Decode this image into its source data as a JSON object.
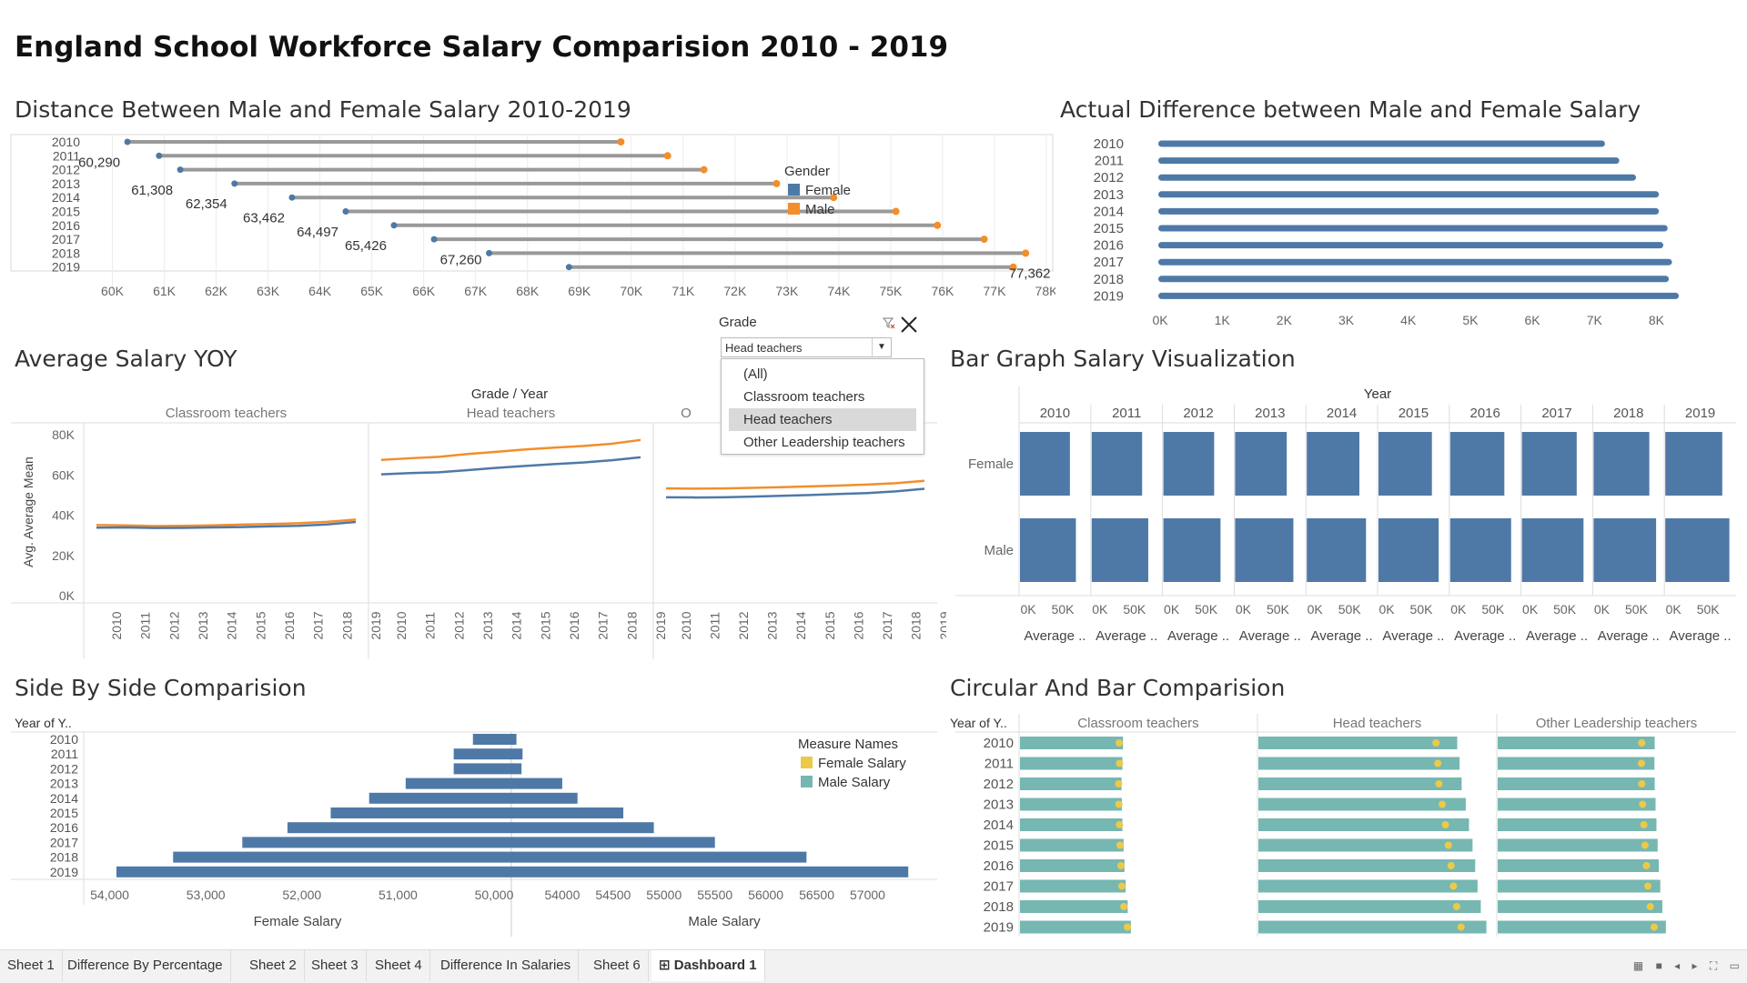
{
  "dashboard_title": "England School Workforce Salary Comparision 2010 - 2019",
  "colors": {
    "female": "#4e79a7",
    "male": "#f28e2b",
    "female_salary": "#edc948",
    "male_salary": "#76b7b2",
    "line_gray": "#999999"
  },
  "panel1": {
    "title": "Distance Between Male and Female Salary  2010-2019",
    "legend_title": "Gender",
    "legend_items": [
      "Female",
      "Male"
    ],
    "chart_data": {
      "type": "dumbbell",
      "years": [
        "2010",
        "2011",
        "2012",
        "2013",
        "2014",
        "2015",
        "2016",
        "2017",
        "2018",
        "2019"
      ],
      "female": [
        60290,
        60900,
        61308,
        62354,
        63462,
        64497,
        65426,
        66200,
        67260,
        68800
      ],
      "male": [
        69800,
        70700,
        71400,
        72800,
        73900,
        75100,
        75900,
        76800,
        77600,
        77362
      ],
      "labels": [
        {
          "row": 1,
          "value": 60290,
          "text": "60,290"
        },
        {
          "row": 3,
          "value": 61308,
          "text": "61,308"
        },
        {
          "row": 4,
          "value": 62354,
          "text": "62,354"
        },
        {
          "row": 5,
          "value": 63462,
          "text": "63,462"
        },
        {
          "row": 6,
          "value": 64497,
          "text": "64,497"
        },
        {
          "row": 7,
          "value": 65426,
          "text": "65,426"
        },
        {
          "row": 8,
          "value": 67260,
          "text": "67,260"
        },
        {
          "row": 9,
          "value": 77362,
          "text": "77,362"
        }
      ],
      "xlim": [
        59500,
        78000
      ],
      "ticks": [
        60000,
        61000,
        62000,
        63000,
        64000,
        65000,
        66000,
        67000,
        68000,
        69000,
        70000,
        71000,
        72000,
        73000,
        74000,
        75000,
        76000,
        77000,
        78000
      ],
      "tick_labels": [
        "60K",
        "61K",
        "62K",
        "63K",
        "64K",
        "65K",
        "66K",
        "67K",
        "68K",
        "69K",
        "70K",
        "71K",
        "72K",
        "73K",
        "74K",
        "75K",
        "76K",
        "77K",
        "78K"
      ]
    }
  },
  "panel2": {
    "title": "Actual Difference between Male and Female Salary",
    "chart_data": {
      "type": "bar",
      "orientation": "horizontal",
      "categories": [
        "2010",
        "2011",
        "2012",
        "2013",
        "2014",
        "2015",
        "2016",
        "2017",
        "2018",
        "2019"
      ],
      "values": [
        7200,
        7430,
        7700,
        8070,
        8070,
        8210,
        8140,
        8280,
        8230,
        8390
      ],
      "xlim": [
        0,
        8800
      ],
      "ticks": [
        0,
        1000,
        2000,
        3000,
        4000,
        5000,
        6000,
        7000,
        8000
      ],
      "tick_labels": [
        "0K",
        "1K",
        "2K",
        "3K",
        "4K",
        "5K",
        "6K",
        "7K",
        "8K"
      ]
    }
  },
  "panel3": {
    "title": "Average Salary YOY",
    "header": "Grade / Year",
    "ylabel": "Avg. Average Mean",
    "ytick_labels": [
      "80K",
      "60K",
      "40K",
      "20K",
      "0K"
    ],
    "chart_data": {
      "type": "line",
      "ylim": [
        0,
        85000
      ],
      "yticks": [
        80000,
        60000,
        40000,
        20000,
        0
      ],
      "years": [
        "2010",
        "2011",
        "2012",
        "2013",
        "2014",
        "2015",
        "2016",
        "2017",
        "2018",
        "2019"
      ],
      "panes": [
        {
          "name": "Classroom teachers",
          "female": [
            33800,
            33900,
            33600,
            33700,
            33900,
            34100,
            34400,
            34700,
            35400,
            36600
          ],
          "male": [
            35100,
            34900,
            34600,
            34700,
            34900,
            35300,
            35600,
            36000,
            36700,
            37800
          ]
        },
        {
          "name": "Head teachers",
          "female": [
            60300,
            60900,
            61300,
            62400,
            63500,
            64500,
            65400,
            66200,
            67300,
            68800
          ],
          "male": [
            67500,
            68300,
            69000,
            70400,
            71500,
            72700,
            73600,
            74400,
            75500,
            77400
          ]
        },
        {
          "name": "Other Leadership teachers",
          "female": [
            48900,
            48800,
            48900,
            49200,
            49600,
            50000,
            50500,
            51000,
            51800,
            53100
          ],
          "male": [
            53300,
            53200,
            53300,
            53600,
            53900,
            54300,
            54700,
            55200,
            55900,
            57100
          ]
        }
      ],
      "visible_pane_labels": [
        "Classroom teachers",
        "Head teachers",
        "O"
      ]
    }
  },
  "filter": {
    "label": "Grade",
    "selected": "Head teachers",
    "options": [
      "(All)",
      "Classroom teachers",
      "Head teachers",
      "Other Leadership teachers"
    ]
  },
  "panel4": {
    "title": "Bar Graph Salary Visualization",
    "header": "Year",
    "row_labels": [
      "Female",
      "Male"
    ],
    "footer_label": "Average ..",
    "axis_tick_labels": [
      "0K",
      "50K"
    ],
    "chart_data": {
      "type": "bar",
      "orientation": "horizontal",
      "years": [
        "2010",
        "2011",
        "2012",
        "2013",
        "2014",
        "2015",
        "2016",
        "2017",
        "2018",
        "2019"
      ],
      "xlim": [
        0,
        80000
      ],
      "female": [
        60300,
        60900,
        61300,
        62400,
        63500,
        64500,
        65400,
        66200,
        67300,
        68800
      ],
      "male": [
        67500,
        68300,
        69000,
        70400,
        71500,
        72700,
        73600,
        74400,
        75500,
        77400
      ]
    }
  },
  "panel5": {
    "title": "Side By Side Comparision",
    "row_header": "Year of Y..",
    "legend_title": "Measure Names",
    "legend_items": [
      "Female Salary",
      "Male Salary"
    ],
    "left_axis_label": "Female Salary",
    "right_axis_label": "Male Salary",
    "chart_data": {
      "type": "butterfly",
      "years": [
        "2010",
        "2011",
        "2012",
        "2013",
        "2014",
        "2015",
        "2016",
        "2017",
        "2018",
        "2019"
      ],
      "female": [
        50220,
        50420,
        50420,
        50920,
        51300,
        51700,
        52150,
        52620,
        53340,
        53930
      ],
      "female_axis_reversed": true,
      "female_xlim": [
        54100,
        49820
      ],
      "female_ticks": [
        54000,
        53000,
        52000,
        51000,
        50000
      ],
      "female_tick_labels": [
        "54,000",
        "53,000",
        "52,000",
        "51,000",
        "50,000"
      ],
      "male": [
        53550,
        53610,
        53600,
        54000,
        54150,
        54600,
        54900,
        55500,
        56400,
        57400
      ],
      "male_xlim": [
        53500,
        57550
      ],
      "male_ticks": [
        54000,
        54500,
        55000,
        55500,
        56000,
        56500,
        57000
      ],
      "male_tick_labels": [
        "54000",
        "54500",
        "55000",
        "55500",
        "56000",
        "56500",
        "57000"
      ]
    }
  },
  "panel6": {
    "title": "Circular And Bar Comparision",
    "row_header": "Year of Y..",
    "chart_data": {
      "type": "bar_and_dot",
      "years": [
        "2010",
        "2011",
        "2012",
        "2013",
        "2014",
        "2015",
        "2016",
        "2017",
        "2018",
        "2019"
      ],
      "xlim": [
        0,
        80000
      ],
      "panes": [
        {
          "name": "Classroom teachers",
          "male": [
            35100,
            34900,
            34600,
            34700,
            34900,
            35300,
            35600,
            36000,
            36700,
            37800
          ],
          "female": [
            33800,
            33900,
            33600,
            33700,
            33900,
            34100,
            34400,
            34700,
            35400,
            36600
          ]
        },
        {
          "name": "Head teachers",
          "male": [
            67500,
            68300,
            69000,
            70400,
            71500,
            72700,
            73600,
            74400,
            75500,
            77400
          ],
          "female": [
            60300,
            60900,
            61300,
            62400,
            63500,
            64500,
            65400,
            66200,
            67300,
            68800
          ]
        },
        {
          "name": "Other Leadership teachers",
          "male": [
            53300,
            53200,
            53300,
            53600,
            53900,
            54300,
            54700,
            55200,
            55900,
            57100
          ],
          "female": [
            48900,
            48800,
            48900,
            49200,
            49600,
            50000,
            50500,
            51000,
            51800,
            53100
          ]
        }
      ]
    }
  },
  "tabs": [
    "Sheet 1",
    "Difference By Percentage",
    "Sheet 2",
    "Sheet 3",
    "Sheet 4",
    "Difference In Salaries",
    "Sheet 6",
    "Dashboard 1"
  ],
  "active_tab": "Dashboard 1"
}
